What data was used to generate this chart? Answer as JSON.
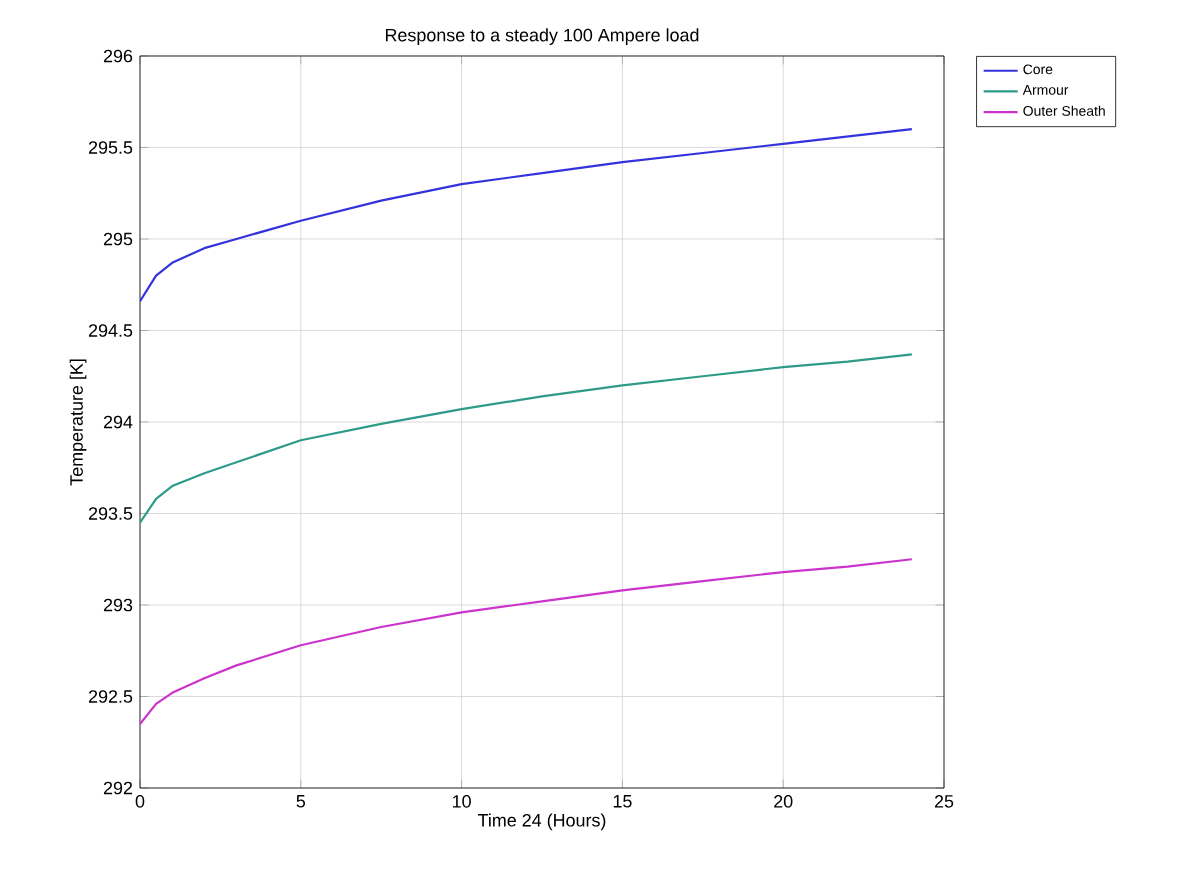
{
  "chart_data": {
    "type": "line",
    "title": "Response to a steady 100 Ampere load",
    "xlabel": "Time 24 (Hours)",
    "ylabel": "Temperature [K]",
    "x": [
      0,
      0.5,
      1,
      2,
      3,
      5,
      7.5,
      10,
      12.5,
      15,
      17.5,
      20,
      22,
      24
    ],
    "series": [
      {
        "name": "Core",
        "color": "#3333dd",
        "values": [
          294.66,
          294.8,
          294.87,
          294.95,
          295.0,
          295.1,
          295.21,
          295.3,
          295.36,
          295.42,
          295.47,
          295.52,
          295.56,
          295.6
        ]
      },
      {
        "name": "Armour",
        "color": "#2e9a88",
        "values": [
          293.45,
          293.58,
          293.65,
          293.72,
          293.78,
          293.9,
          293.99,
          294.07,
          294.14,
          294.2,
          294.25,
          294.3,
          294.33,
          294.37
        ]
      },
      {
        "name": "Outer Sheath",
        "color": "#cc33cc",
        "values": [
          292.35,
          292.46,
          292.52,
          292.6,
          292.67,
          292.78,
          292.88,
          292.96,
          293.02,
          293.08,
          293.13,
          293.18,
          293.21,
          293.25
        ]
      }
    ],
    "xlim": [
      0,
      25
    ],
    "ylim": [
      292,
      296
    ],
    "xticks": [
      0,
      5,
      10,
      15,
      20,
      25
    ],
    "yticks": [
      292,
      292.5,
      293,
      293.5,
      294,
      294.5,
      295,
      295.5,
      296
    ],
    "grid": true,
    "legend": "top right",
    "marker": "none",
    "line_style": "solid"
  }
}
